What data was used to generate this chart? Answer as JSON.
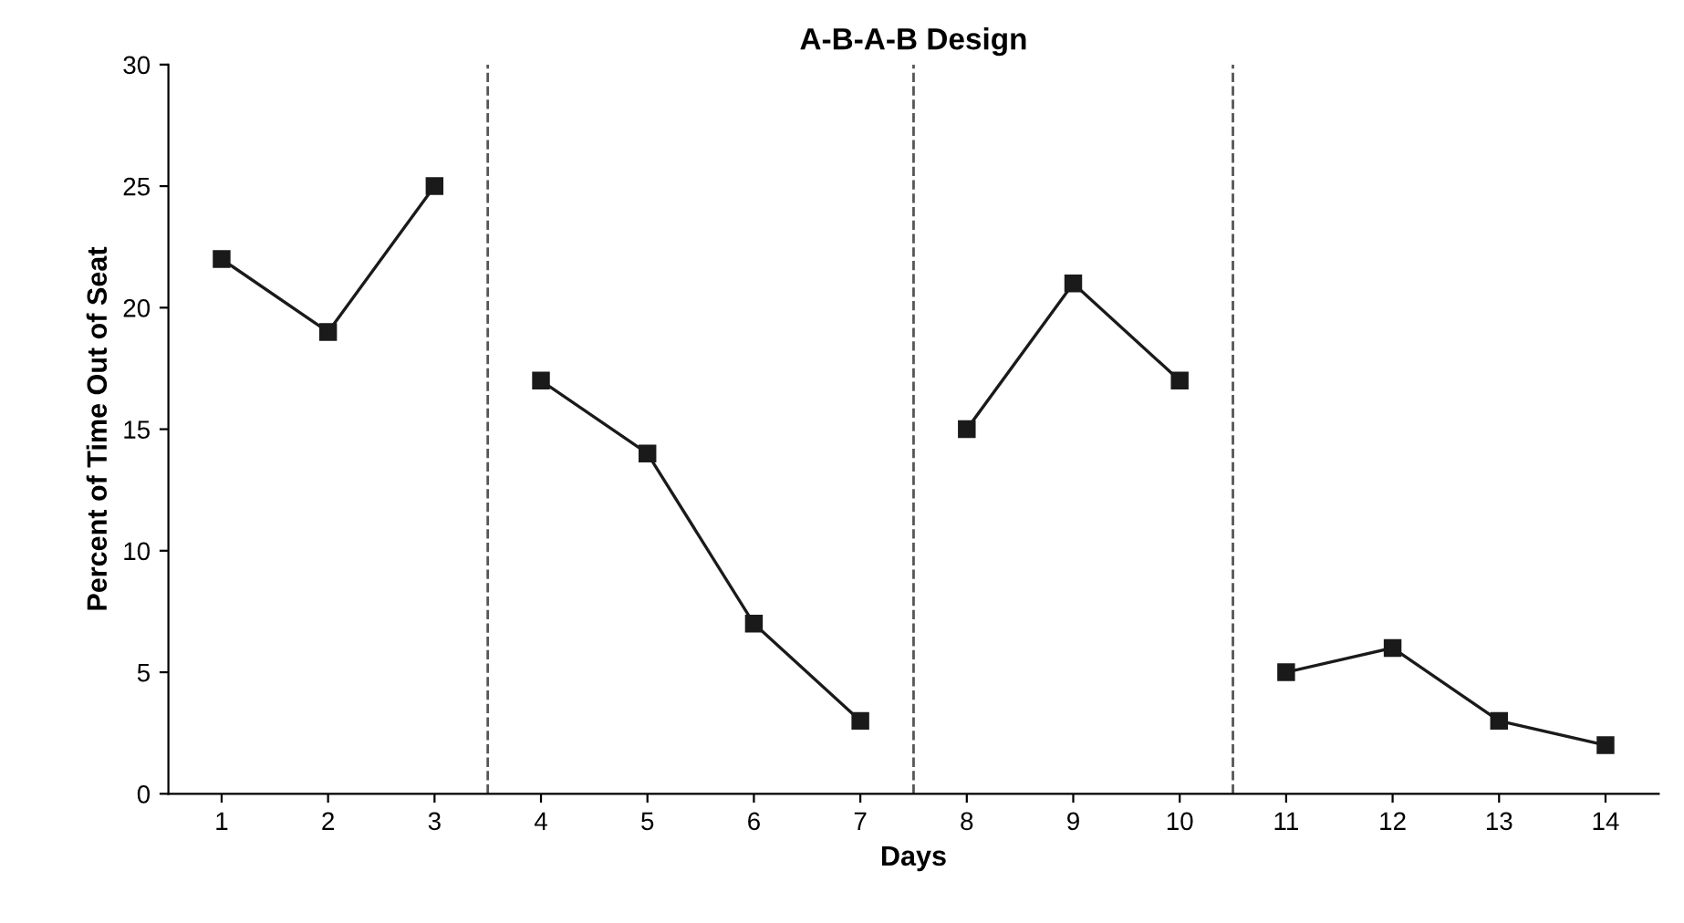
{
  "chart_data": {
    "type": "line",
    "title": "A-B-A-B Design",
    "xlabel": "Days",
    "ylabel": "Percent of Time Out of Seat",
    "xlim": [
      0.5,
      14.5
    ],
    "xticks": [
      1,
      2,
      3,
      4,
      5,
      6,
      7,
      8,
      9,
      10,
      11,
      12,
      13,
      14
    ],
    "ylim": [
      0,
      30
    ],
    "yticks": [
      0,
      5,
      10,
      15,
      20,
      25,
      30
    ],
    "series": [
      {
        "color": "#1a1a1a",
        "x": [
          1,
          2,
          3
        ],
        "values": [
          22,
          19,
          25
        ]
      },
      {
        "color": "#1a1a1a",
        "x": [
          4,
          5,
          6,
          7
        ],
        "values": [
          17,
          14,
          7,
          3
        ]
      },
      {
        "color": "#1a1a1a",
        "x": [
          8,
          9,
          10
        ],
        "values": [
          15,
          21,
          17
        ]
      },
      {
        "color": "#1a1a1a",
        "x": [
          11,
          12,
          13,
          14
        ],
        "values": [
          5,
          6,
          3,
          2
        ]
      }
    ],
    "ref_lines": [
      {
        "axis": "x",
        "value": 3.5,
        "color": "#555555",
        "line_style": "dashed"
      },
      {
        "axis": "x",
        "value": 7.5,
        "color": "#555555",
        "line_style": "dashed"
      },
      {
        "axis": "x",
        "value": 10.5,
        "color": "#555555",
        "line_style": "dashed"
      }
    ],
    "marker": "square",
    "line_style": "solid",
    "grid": false,
    "legend": false
  }
}
